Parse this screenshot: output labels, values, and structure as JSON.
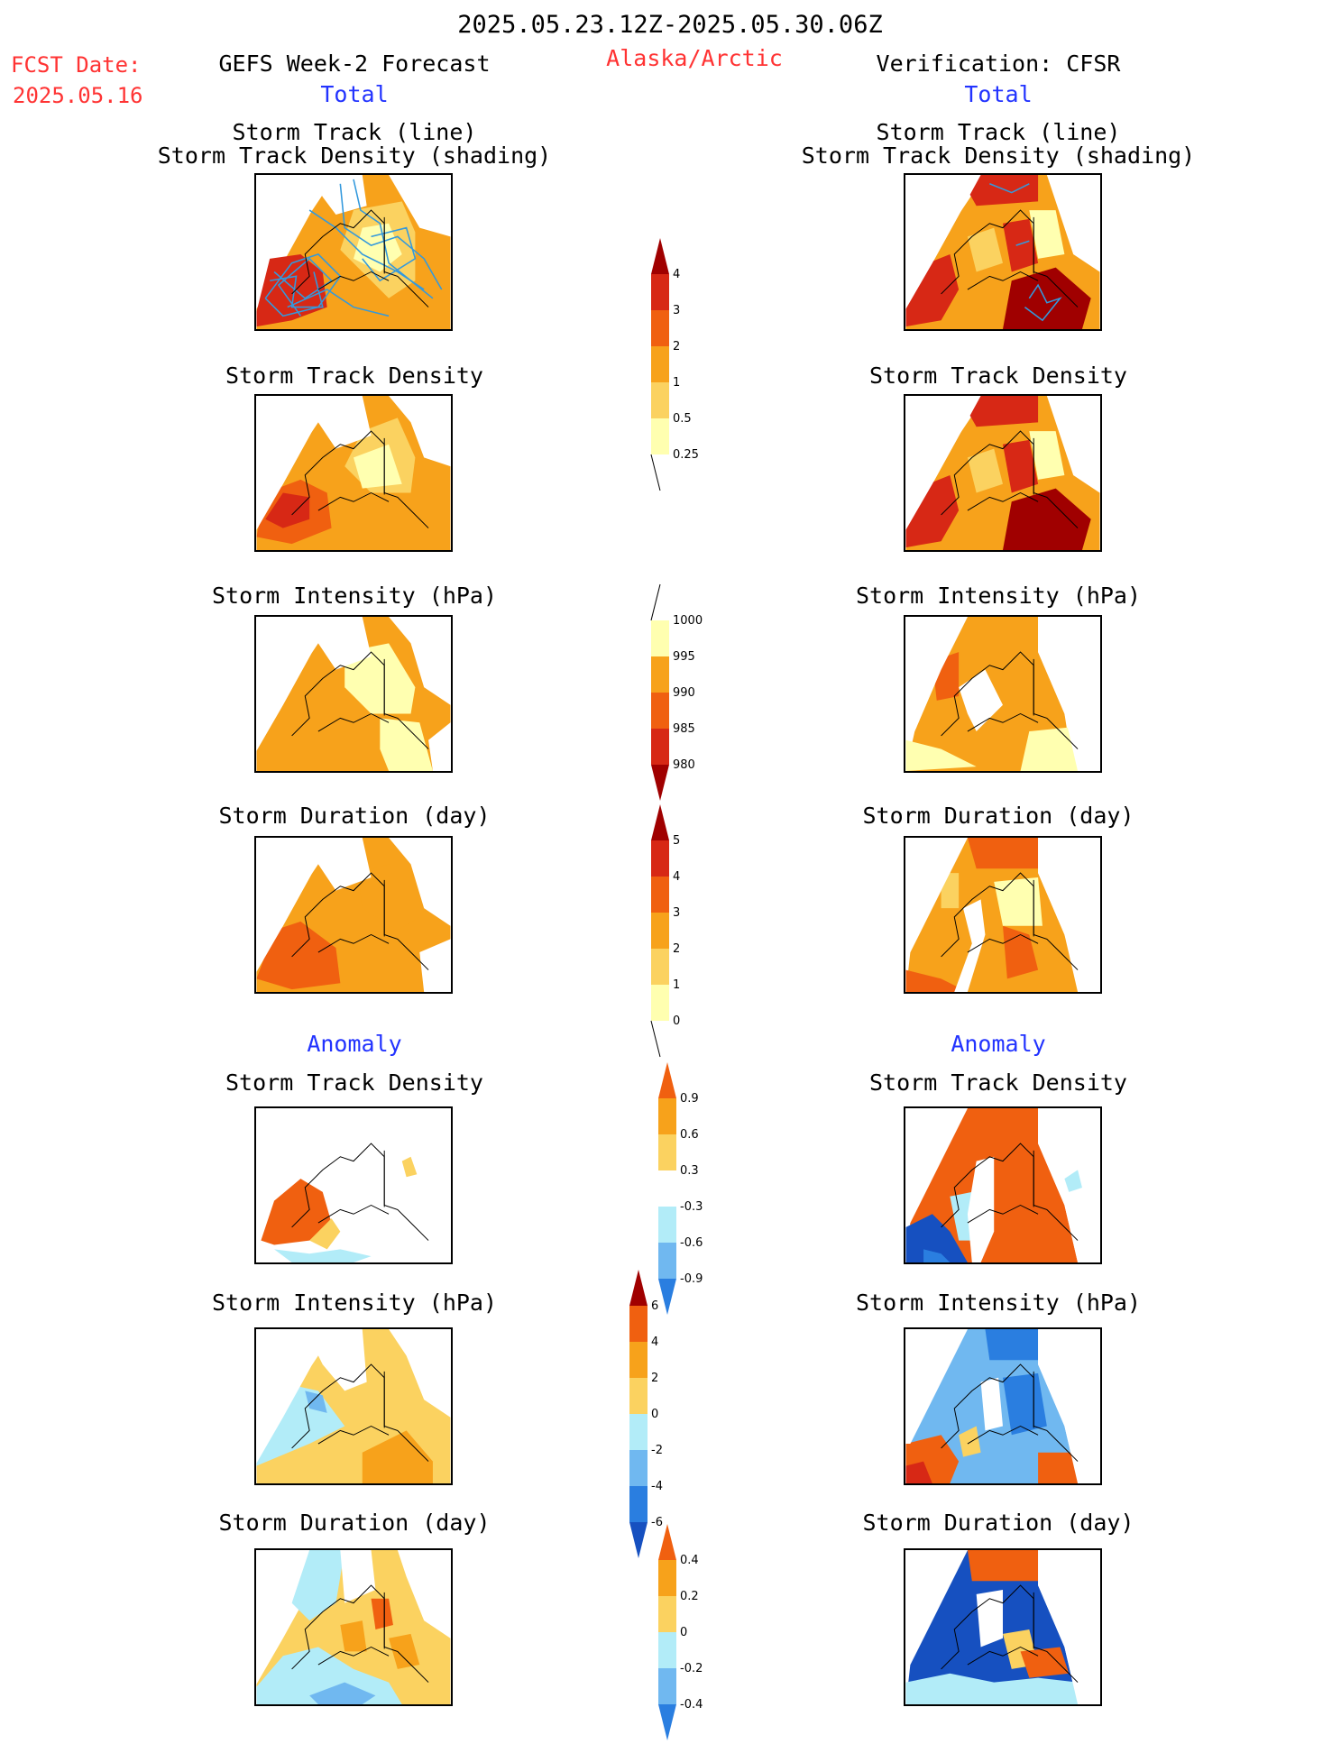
{
  "header": {
    "period": "2025.05.23.12Z-2025.05.30.06Z",
    "fcst_label": "FCST Date:",
    "fcst_date": "2025.05.16",
    "forecast_title": "GEFS Week-2 Forecast",
    "region": "Alaska/Arctic",
    "verification_title": "Verification: CFSR",
    "total_label": "Total",
    "anomaly_label": "Anomaly"
  },
  "panel_titles": {
    "track_line": "Storm Track (line)",
    "track_shading": "Storm Track Density (shading)",
    "track_density": "Storm Track Density",
    "intensity": "Storm Intensity (hPa)",
    "duration": "Storm Duration (day)"
  },
  "colorbars": {
    "density_total": [
      "0.25",
      "0.5",
      "1",
      "2",
      "3",
      "4"
    ],
    "intensity_total": [
      "1000",
      "995",
      "990",
      "985",
      "980"
    ],
    "duration_total": [
      "0",
      "1",
      "2",
      "3",
      "4",
      "5"
    ],
    "density_anomaly": [
      "0.9",
      "0.6",
      "0.3",
      "-0.3",
      "-0.6",
      "-0.9"
    ],
    "intensity_anomaly": [
      "6",
      "4",
      "2",
      "0",
      "-2",
      "-4",
      "-6"
    ],
    "duration_anomaly": [
      "0.4",
      "0.2",
      "0",
      "-0.2",
      "-0.4"
    ]
  },
  "colors": {
    "heat_1": "#ffffb0",
    "heat_2": "#fbd260",
    "heat_3": "#f7a21b",
    "heat_4": "#f06010",
    "heat_5": "#d72815",
    "heat_6": "#a00000",
    "cool_1": "#b2ecf8",
    "cool_2": "#70b8f0",
    "cool_3": "#2a7ee0",
    "cool_4": "#1650c0",
    "track": "#3399dd"
  }
}
